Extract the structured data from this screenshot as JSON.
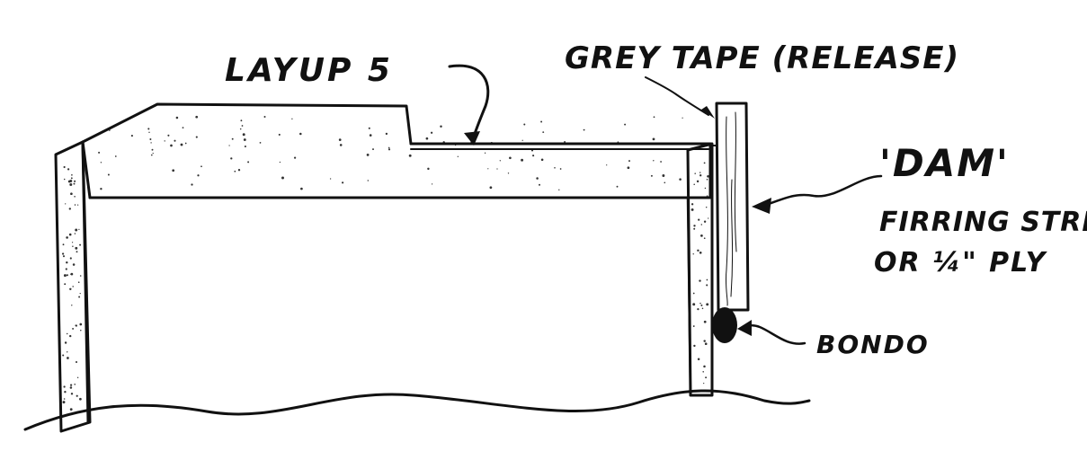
{
  "labels": {
    "layup": "LAYUP 5",
    "grey_tape": "GREY TAPE (RELEASE)",
    "dam": "'DAM'",
    "firring_line1": "FIRRING STRIP",
    "firring_line2": "OR ¼\" PLY",
    "bondo": "BONDO"
  },
  "colors": {
    "ink": "#111111",
    "paper": "#ffffff",
    "fill_light": "#f7f7f7"
  }
}
